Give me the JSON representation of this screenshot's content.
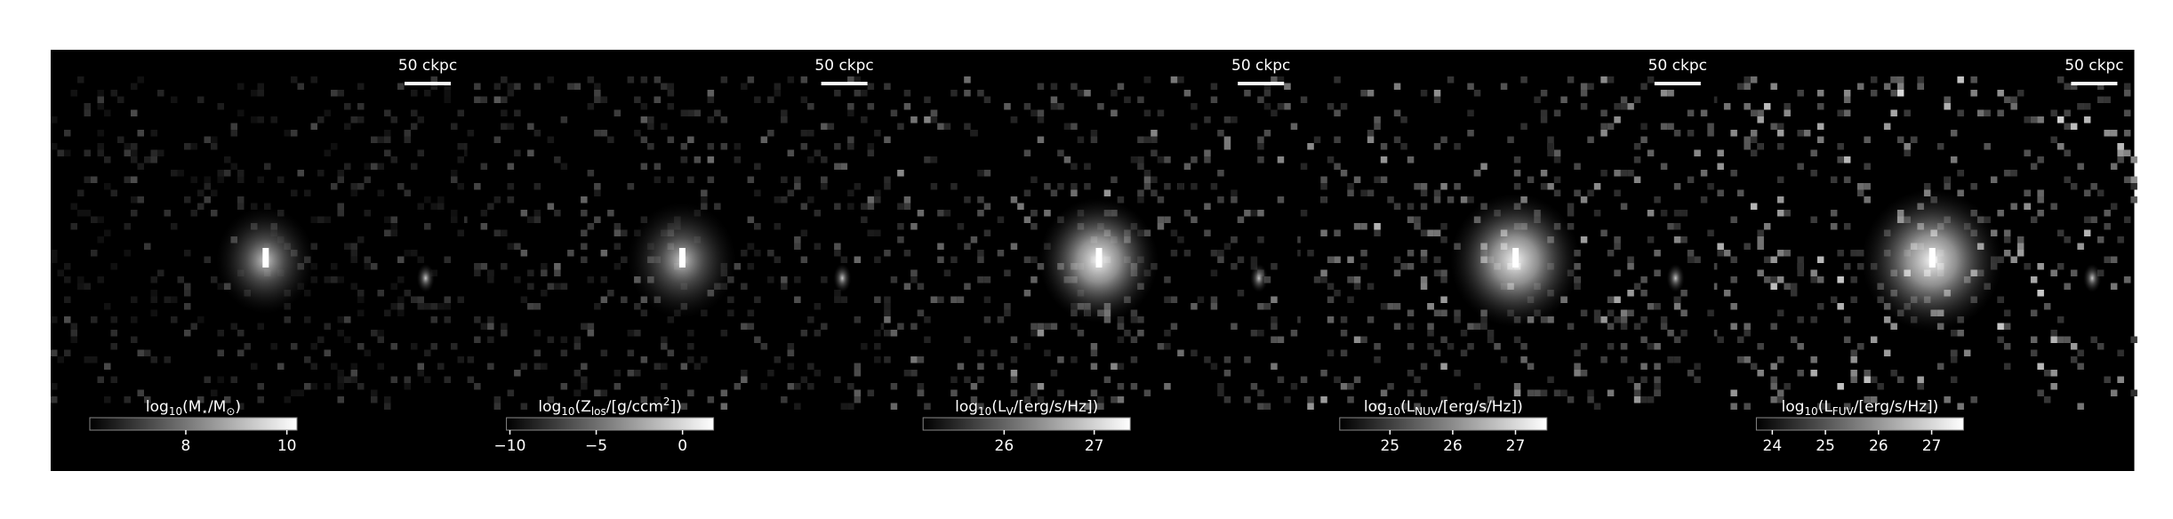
{
  "chart_data": [
    {
      "type": "image",
      "scale_bar": "50 ckpc",
      "colorbar": {
        "label": [
          {
            "text": "log"
          },
          {
            "text": "10",
            "sub": true
          },
          {
            "text": "(M"
          },
          {
            "text": "⋆",
            "sub": true
          },
          {
            "text": "/M"
          },
          {
            "text": "⊙",
            "sub": true
          },
          {
            "text": ")"
          }
        ],
        "clim": [
          6.1,
          10.2
        ],
        "ticks": [
          8,
          10
        ]
      }
    },
    {
      "type": "image",
      "scale_bar": "50 ckpc",
      "colorbar": {
        "label": [
          {
            "text": "log"
          },
          {
            "text": "10",
            "sub": true
          },
          {
            "text": "(Z"
          },
          {
            "text": "los",
            "sub": true
          },
          {
            "text": "/[g/ccm"
          },
          {
            "text": "2",
            "sup": true
          },
          {
            "text": "])"
          }
        ],
        "clim": [
          -10.2,
          1.8
        ],
        "ticks": [
          {
            "value": -10,
            "label": "−10"
          },
          {
            "value": -5,
            "label": "−5"
          },
          0
        ]
      }
    },
    {
      "type": "image",
      "scale_bar": "50 ckpc",
      "colorbar": {
        "label": [
          {
            "text": "log"
          },
          {
            "text": "10",
            "sub": true
          },
          {
            "text": "(L"
          },
          {
            "text": "V",
            "sub": true
          },
          {
            "text": "/[erg/s/Hz])"
          }
        ],
        "clim": [
          25.1,
          27.4
        ],
        "ticks": [
          26,
          27
        ]
      }
    },
    {
      "type": "image",
      "scale_bar": "50 ckpc",
      "colorbar": {
        "label": [
          {
            "text": "log"
          },
          {
            "text": "10",
            "sub": true
          },
          {
            "text": "(L"
          },
          {
            "text": "NUV",
            "sub": true
          },
          {
            "text": "/[erg/s/Hz])"
          }
        ],
        "clim": [
          24.2,
          27.5
        ],
        "ticks": [
          25,
          26,
          27
        ]
      }
    },
    {
      "type": "image",
      "scale_bar": "50 ckpc",
      "colorbar": {
        "label": [
          {
            "text": "log"
          },
          {
            "text": "10",
            "sub": true
          },
          {
            "text": "(L"
          },
          {
            "text": "FUV",
            "sub": true
          },
          {
            "text": "/[erg/s/Hz])"
          }
        ],
        "clim": [
          23.7,
          27.6
        ],
        "ticks": [
          24,
          25,
          26,
          27
        ]
      }
    }
  ]
}
